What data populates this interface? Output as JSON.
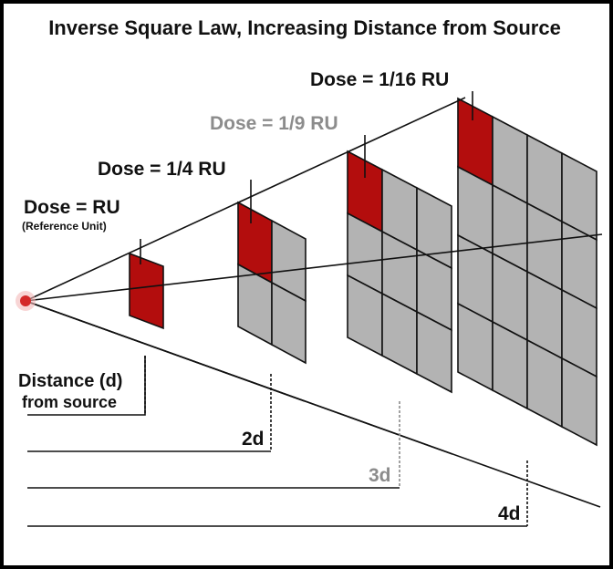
{
  "title": "Inverse Square Law, Increasing Distance from Source",
  "labels": {
    "dose_1": "Dose = RU",
    "dose_1_sub": "(Reference Unit)",
    "dose_2": "Dose = 1/4 RU",
    "dose_3": "Dose = 1/9 RU",
    "dose_4": "Dose = 1/16 RU",
    "distance_1": "Distance (d)",
    "distance_1_sub": "from source",
    "distance_2": "2d",
    "distance_3": "3d",
    "distance_4": "4d"
  },
  "colors": {
    "source": "#d42a2a",
    "highlight_cell": "#b30d0d",
    "grey_cell": "#b3b3b3",
    "muted_label": "#8c8c8c",
    "frame": "#000000"
  },
  "grids": [
    {
      "size": 1
    },
    {
      "size": 2
    },
    {
      "size": 3
    },
    {
      "size": 4
    }
  ]
}
